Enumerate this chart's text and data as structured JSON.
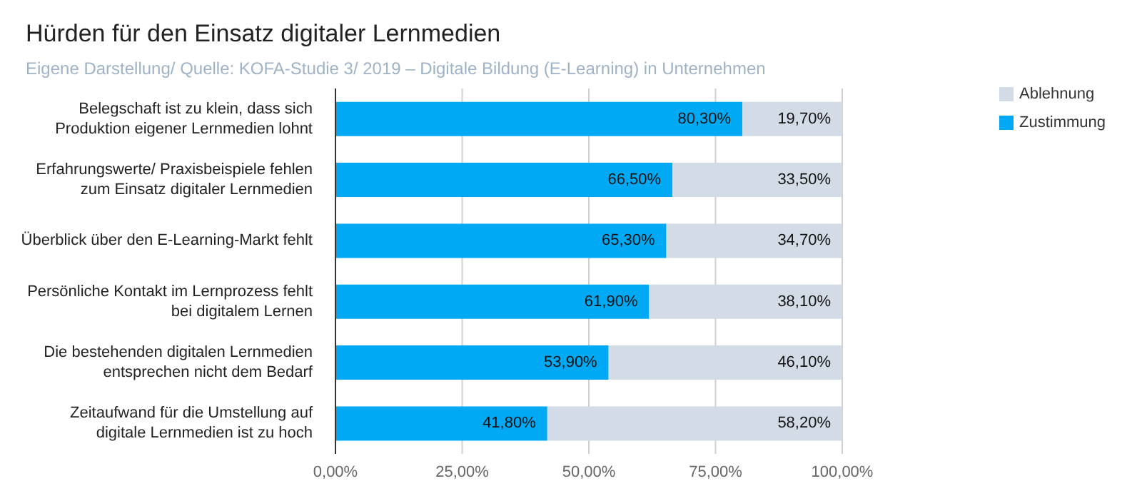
{
  "chart_data": {
    "type": "bar",
    "orientation": "horizontal",
    "stacked": true,
    "title": "Hürden für den Einsatz digitaler Lernmedien",
    "subtitle": "Eigene Darstellung/ Quelle: KOFA-Studie 3/ 2019 – Digitale Bildung (E-Learning) in Unternehmen",
    "categories": [
      "Belegschaft ist zu klein, dass sich Produktion eigener Lernmedien lohnt",
      "Erfahrungswerte/ Praxisbeispiele fehlen zum Einsatz digitaler Lernmedien",
      "Überblick über den E-Learning-Markt fehlt",
      "Persönliche Kontakt im Lernprozess fehlt bei digitalem Lernen",
      "Die bestehenden digitalen Lernmedien entsprechen nicht dem Bedarf",
      "Zeitaufwand für die Umstellung auf digitale Lernmedien ist zu hoch"
    ],
    "series": [
      {
        "name": "Zustimmung",
        "color": "#00a9f4",
        "values": [
          80.3,
          66.5,
          65.3,
          61.9,
          53.9,
          41.8
        ],
        "value_labels": [
          "80,30%",
          "66,50%",
          "65,30%",
          "61,90%",
          "53,90%",
          "41,80%"
        ]
      },
      {
        "name": "Ablehnung",
        "color": "#d3dce6",
        "values": [
          19.7,
          33.5,
          34.7,
          38.1,
          46.1,
          58.2
        ],
        "value_labels": [
          "19,70%",
          "33,50%",
          "34,70%",
          "38,10%",
          "46,10%",
          "58,20%"
        ]
      }
    ],
    "xlim": [
      0,
      100
    ],
    "xticks": [
      {
        "value": 0,
        "label": "0,00%"
      },
      {
        "value": 25,
        "label": "25,00%"
      },
      {
        "value": 50,
        "label": "50,00%"
      },
      {
        "value": 75,
        "label": "75,00%"
      },
      {
        "value": 100,
        "label": "100,00%"
      }
    ],
    "grid": "x",
    "legend": "top right"
  }
}
